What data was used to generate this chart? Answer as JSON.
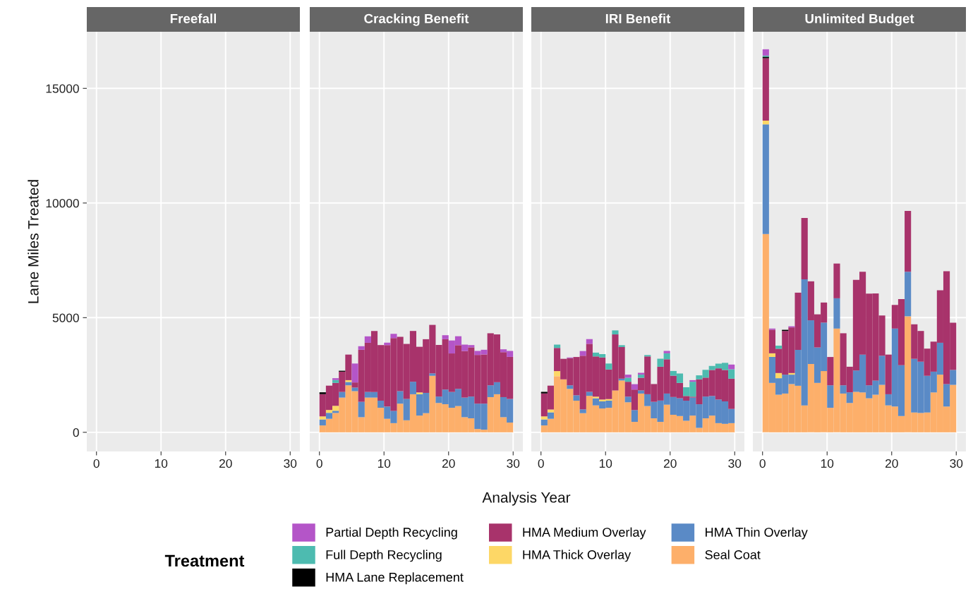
{
  "chart_data": [
    {
      "type": "bar",
      "stacked": true,
      "title": "Freefall",
      "ylabel": "Lane Miles Treated",
      "xlim": [
        -1.5,
        31.5
      ],
      "xticks": [
        0,
        10,
        20,
        30
      ],
      "ylim": [
        -835,
        17470
      ],
      "yticks": [
        0,
        5000,
        10000,
        15000
      ],
      "grid": true
    },
    {
      "type": "bar",
      "stacked": true,
      "title": "Cracking Benefit",
      "tick_labels": "x",
      "xlim": [
        -1.5,
        31.5
      ],
      "xticks": [
        0,
        10,
        20,
        30
      ],
      "ylim": [
        -835,
        17470
      ],
      "yticks": [
        0,
        5000,
        10000,
        15000
      ],
      "grid": true,
      "legend": "bottom",
      "legend_title": "Treatment",
      "annotations": [
        "Analysis Year"
      ],
      "x": [
        0.5,
        1.5,
        2.5,
        3.5,
        4.5,
        5.5,
        6.5,
        7.5,
        8.5,
        9.5,
        10.5,
        11.5,
        12.5,
        13.5,
        14.5,
        15.5,
        16.5,
        17.5,
        18.5,
        19.5,
        20.5,
        21.5,
        22.5,
        23.5,
        24.5,
        25.5,
        26.5,
        27.5,
        28.5,
        29.5
      ],
      "series": [
        {
          "name": "Seal Coat",
          "color": "#fdaf6a",
          "values": [
            300,
            590,
            845,
            1515,
            2050,
            1795,
            660,
            1515,
            1515,
            1070,
            590,
            400,
            1250,
            525,
            1660,
            730,
            835,
            2465,
            1280,
            1225,
            1070,
            1145,
            660,
            610,
            145,
            115,
            1535,
            1660,
            660,
            425
          ]
        },
        {
          "name": "HMA Thin Overlay",
          "color": "#5a8ac6",
          "values": [
            260,
            260,
            95,
            245,
            145,
            155,
            670,
            245,
            245,
            310,
            535,
            535,
            545,
            930,
            545,
            930,
            885,
            105,
            280,
            640,
            690,
            750,
            855,
            950,
            1105,
            1135,
            515,
            525,
            875,
            1030
          ]
        },
        {
          "name": "HMA Thick Overlay",
          "color": "#fdd766",
          "values": [
            135,
            125,
            215,
            0,
            80,
            0,
            0,
            0,
            0,
            0,
            0,
            0,
            0,
            0,
            0,
            80,
            0,
            0,
            0,
            0,
            0,
            0,
            0,
            0,
            0,
            0,
            0,
            0,
            0,
            0
          ]
        },
        {
          "name": "HMA Medium Overlay",
          "color": "#a8336b",
          "values": [
            970,
            1060,
            1000,
            885,
            1115,
            225,
            2270,
            2145,
            2660,
            2425,
            2680,
            3175,
            2370,
            2400,
            2215,
            1990,
            2340,
            2115,
            2250,
            2195,
            1680,
            1905,
            2030,
            2145,
            2125,
            2145,
            2270,
            2085,
            1960,
            1835
          ]
        },
        {
          "name": "HMA Lane Replacement",
          "color": "#000000",
          "values": [
            80,
            0,
            0,
            40,
            0,
            0,
            0,
            0,
            0,
            0,
            0,
            0,
            0,
            0,
            0,
            0,
            0,
            0,
            0,
            0,
            0,
            0,
            0,
            0,
            0,
            0,
            0,
            0,
            0,
            0
          ]
        },
        {
          "name": "Full Depth Recycling",
          "color": "#4dbbb0",
          "values": [
            0,
            0,
            125,
            0,
            0,
            0,
            0,
            0,
            0,
            0,
            0,
            0,
            0,
            0,
            0,
            0,
            0,
            0,
            0,
            0,
            0,
            0,
            0,
            0,
            0,
            0,
            0,
            0,
            0,
            0
          ]
        },
        {
          "name": "Partial Depth Recycling",
          "color": "#b455c8",
          "values": [
            0,
            0,
            80,
            0,
            0,
            825,
            155,
            280,
            0,
            0,
            105,
            185,
            0,
            0,
            0,
            0,
            0,
            0,
            0,
            175,
            565,
            390,
            280,
            100,
            175,
            205,
            0,
            0,
            125,
            260
          ]
        }
      ]
    },
    {
      "type": "bar",
      "stacked": true,
      "title": "IRI Benefit",
      "tick_labels": "x",
      "xlim": [
        -1.5,
        31.5
      ],
      "xticks": [
        0,
        10,
        20,
        30
      ],
      "ylim": [
        -835,
        17470
      ],
      "yticks": [
        0,
        5000,
        10000,
        15000
      ],
      "grid": true,
      "x": [
        0.5,
        1.5,
        2.5,
        3.5,
        4.5,
        5.5,
        6.5,
        7.5,
        8.5,
        9.5,
        10.5,
        11.5,
        12.5,
        13.5,
        14.5,
        15.5,
        16.5,
        17.5,
        18.5,
        19.5,
        20.5,
        21.5,
        22.5,
        23.5,
        24.5,
        25.5,
        26.5,
        27.5,
        28.5,
        29.5
      ],
      "series": [
        {
          "color": "#fdaf6a",
          "values": [
            300,
            590,
            2445,
            2310,
            1895,
            1380,
            835,
            1590,
            1175,
            1040,
            1070,
            1825,
            2260,
            1310,
            455,
            1690,
            1145,
            610,
            455,
            1205,
            765,
            710,
            505,
            730,
            195,
            610,
            730,
            400,
            370,
            400
          ]
        },
        {
          "color": "#5a8ac6",
          "values": [
            260,
            280,
            0,
            0,
            155,
            235,
            165,
            175,
            310,
            310,
            310,
            0,
            80,
            245,
            515,
            135,
            515,
            720,
            930,
            485,
            775,
            775,
            875,
            785,
            1030,
            950,
            855,
            1030,
            980,
            620
          ]
        },
        {
          "color": "#fdd766",
          "values": [
            135,
            125,
            225,
            0,
            0,
            0,
            0,
            0,
            70,
            80,
            70,
            0,
            0,
            0,
            0,
            0,
            0,
            0,
            0,
            0,
            0,
            0,
            0,
            0,
            0,
            0,
            0,
            0,
            0,
            0
          ]
        },
        {
          "color": "#a8336b",
          "values": [
            1000,
            1040,
            1010,
            895,
            1185,
            1670,
            2340,
            2095,
            1755,
            1835,
            1290,
            2445,
            1380,
            650,
            895,
            555,
            1650,
            775,
            1475,
            1495,
            930,
            670,
            205,
            40,
            1085,
            825,
            1135,
            1360,
            1370,
            1320
          ]
        },
        {
          "color": "#000000",
          "values": [
            70,
            0,
            0,
            0,
            0,
            0,
            0,
            0,
            0,
            0,
            0,
            0,
            0,
            0,
            0,
            0,
            0,
            0,
            0,
            0,
            0,
            0,
            0,
            0,
            0,
            0,
            0,
            0,
            0,
            0
          ]
        },
        {
          "color": "#4dbbb0",
          "values": [
            0,
            0,
            145,
            0,
            0,
            0,
            0,
            0,
            165,
            145,
            260,
            175,
            80,
            175,
            0,
            135,
            60,
            0,
            350,
            260,
            205,
            410,
            380,
            650,
            175,
            340,
            175,
            205,
            310,
            410
          ]
        },
        {
          "color": "#b455c8",
          "values": [
            0,
            0,
            0,
            0,
            30,
            0,
            205,
            205,
            0,
            0,
            0,
            0,
            0,
            135,
            235,
            80,
            0,
            0,
            0,
            105,
            0,
            0,
            0,
            70,
            0,
            0,
            0,
            0,
            0,
            205
          ]
        }
      ]
    },
    {
      "type": "bar",
      "stacked": true,
      "title": "Unlimited Budget",
      "tick_labels": "x",
      "xlim": [
        -1.5,
        31.5
      ],
      "xticks": [
        0,
        10,
        20,
        30
      ],
      "ylim": [
        -835,
        17470
      ],
      "yticks": [
        0,
        5000,
        10000,
        15000
      ],
      "grid": true,
      "x": [
        0.5,
        1.5,
        2.5,
        3.5,
        4.5,
        5.5,
        6.5,
        7.5,
        8.5,
        9.5,
        10.5,
        11.5,
        12.5,
        13.5,
        14.5,
        15.5,
        16.5,
        17.5,
        18.5,
        19.5,
        20.5,
        21.5,
        22.5,
        23.5,
        24.5,
        25.5,
        26.5,
        27.5,
        28.5,
        29.5
      ],
      "series": [
        {
          "color": "#fdaf6a",
          "values": [
            8650,
            2155,
            1640,
            1690,
            2105,
            2030,
            1175,
            2980,
            2155,
            2670,
            1070,
            4525,
            1690,
            1280,
            1765,
            1740,
            1485,
            1640,
            2070,
            1175,
            1125,
            710,
            5060,
            865,
            845,
            865,
            1740,
            2515,
            1125,
            2070
          ]
        },
        {
          "color": "#5a8ac6",
          "values": [
            4780,
            1135,
            720,
            825,
            410,
            1565,
            5495,
            1905,
            1545,
            2115,
            980,
            1320,
            360,
            465,
            930,
            1650,
            565,
            620,
            1270,
            485,
            3400,
            2215,
            1940,
            2340,
            2235,
            1600,
            905,
            1390,
            980,
            650
          ]
        },
        {
          "color": "#fdd766",
          "values": [
            165,
            155,
            225,
            0,
            70,
            0,
            0,
            0,
            0,
            0,
            0,
            0,
            0,
            0,
            0,
            0,
            0,
            0,
            0,
            0,
            0,
            0,
            0,
            0,
            0,
            0,
            0,
            0,
            0,
            0
          ]
        },
        {
          "color": "#a8336b",
          "values": [
            2720,
            1030,
            1060,
            1905,
            1990,
            2495,
            2680,
            1700,
            1445,
            875,
            1235,
            1515,
            2270,
            1115,
            3950,
            3610,
            4000,
            3795,
            1755,
            1730,
            1030,
            2885,
            2655,
            1505,
            1340,
            1185,
            1310,
            2290,
            4920,
            2060
          ]
        },
        {
          "color": "#000000",
          "values": [
            65,
            0,
            0,
            50,
            0,
            0,
            0,
            0,
            0,
            0,
            0,
            0,
            0,
            0,
            0,
            0,
            0,
            0,
            0,
            0,
            0,
            0,
            0,
            0,
            0,
            0,
            0,
            0,
            0,
            0
          ]
        },
        {
          "color": "#4dbbb0",
          "values": [
            50,
            0,
            135,
            0,
            0,
            0,
            0,
            0,
            0,
            0,
            0,
            0,
            0,
            0,
            0,
            0,
            0,
            0,
            0,
            0,
            0,
            0,
            0,
            0,
            0,
            0,
            0,
            0,
            0,
            0
          ]
        },
        {
          "color": "#b455c8",
          "values": [
            275,
            50,
            0,
            0,
            50,
            0,
            0,
            0,
            0,
            0,
            0,
            0,
            0,
            0,
            0,
            0,
            0,
            0,
            0,
            0,
            0,
            0,
            0,
            0,
            0,
            0,
            0,
            0,
            0,
            0
          ]
        }
      ]
    }
  ]
}
